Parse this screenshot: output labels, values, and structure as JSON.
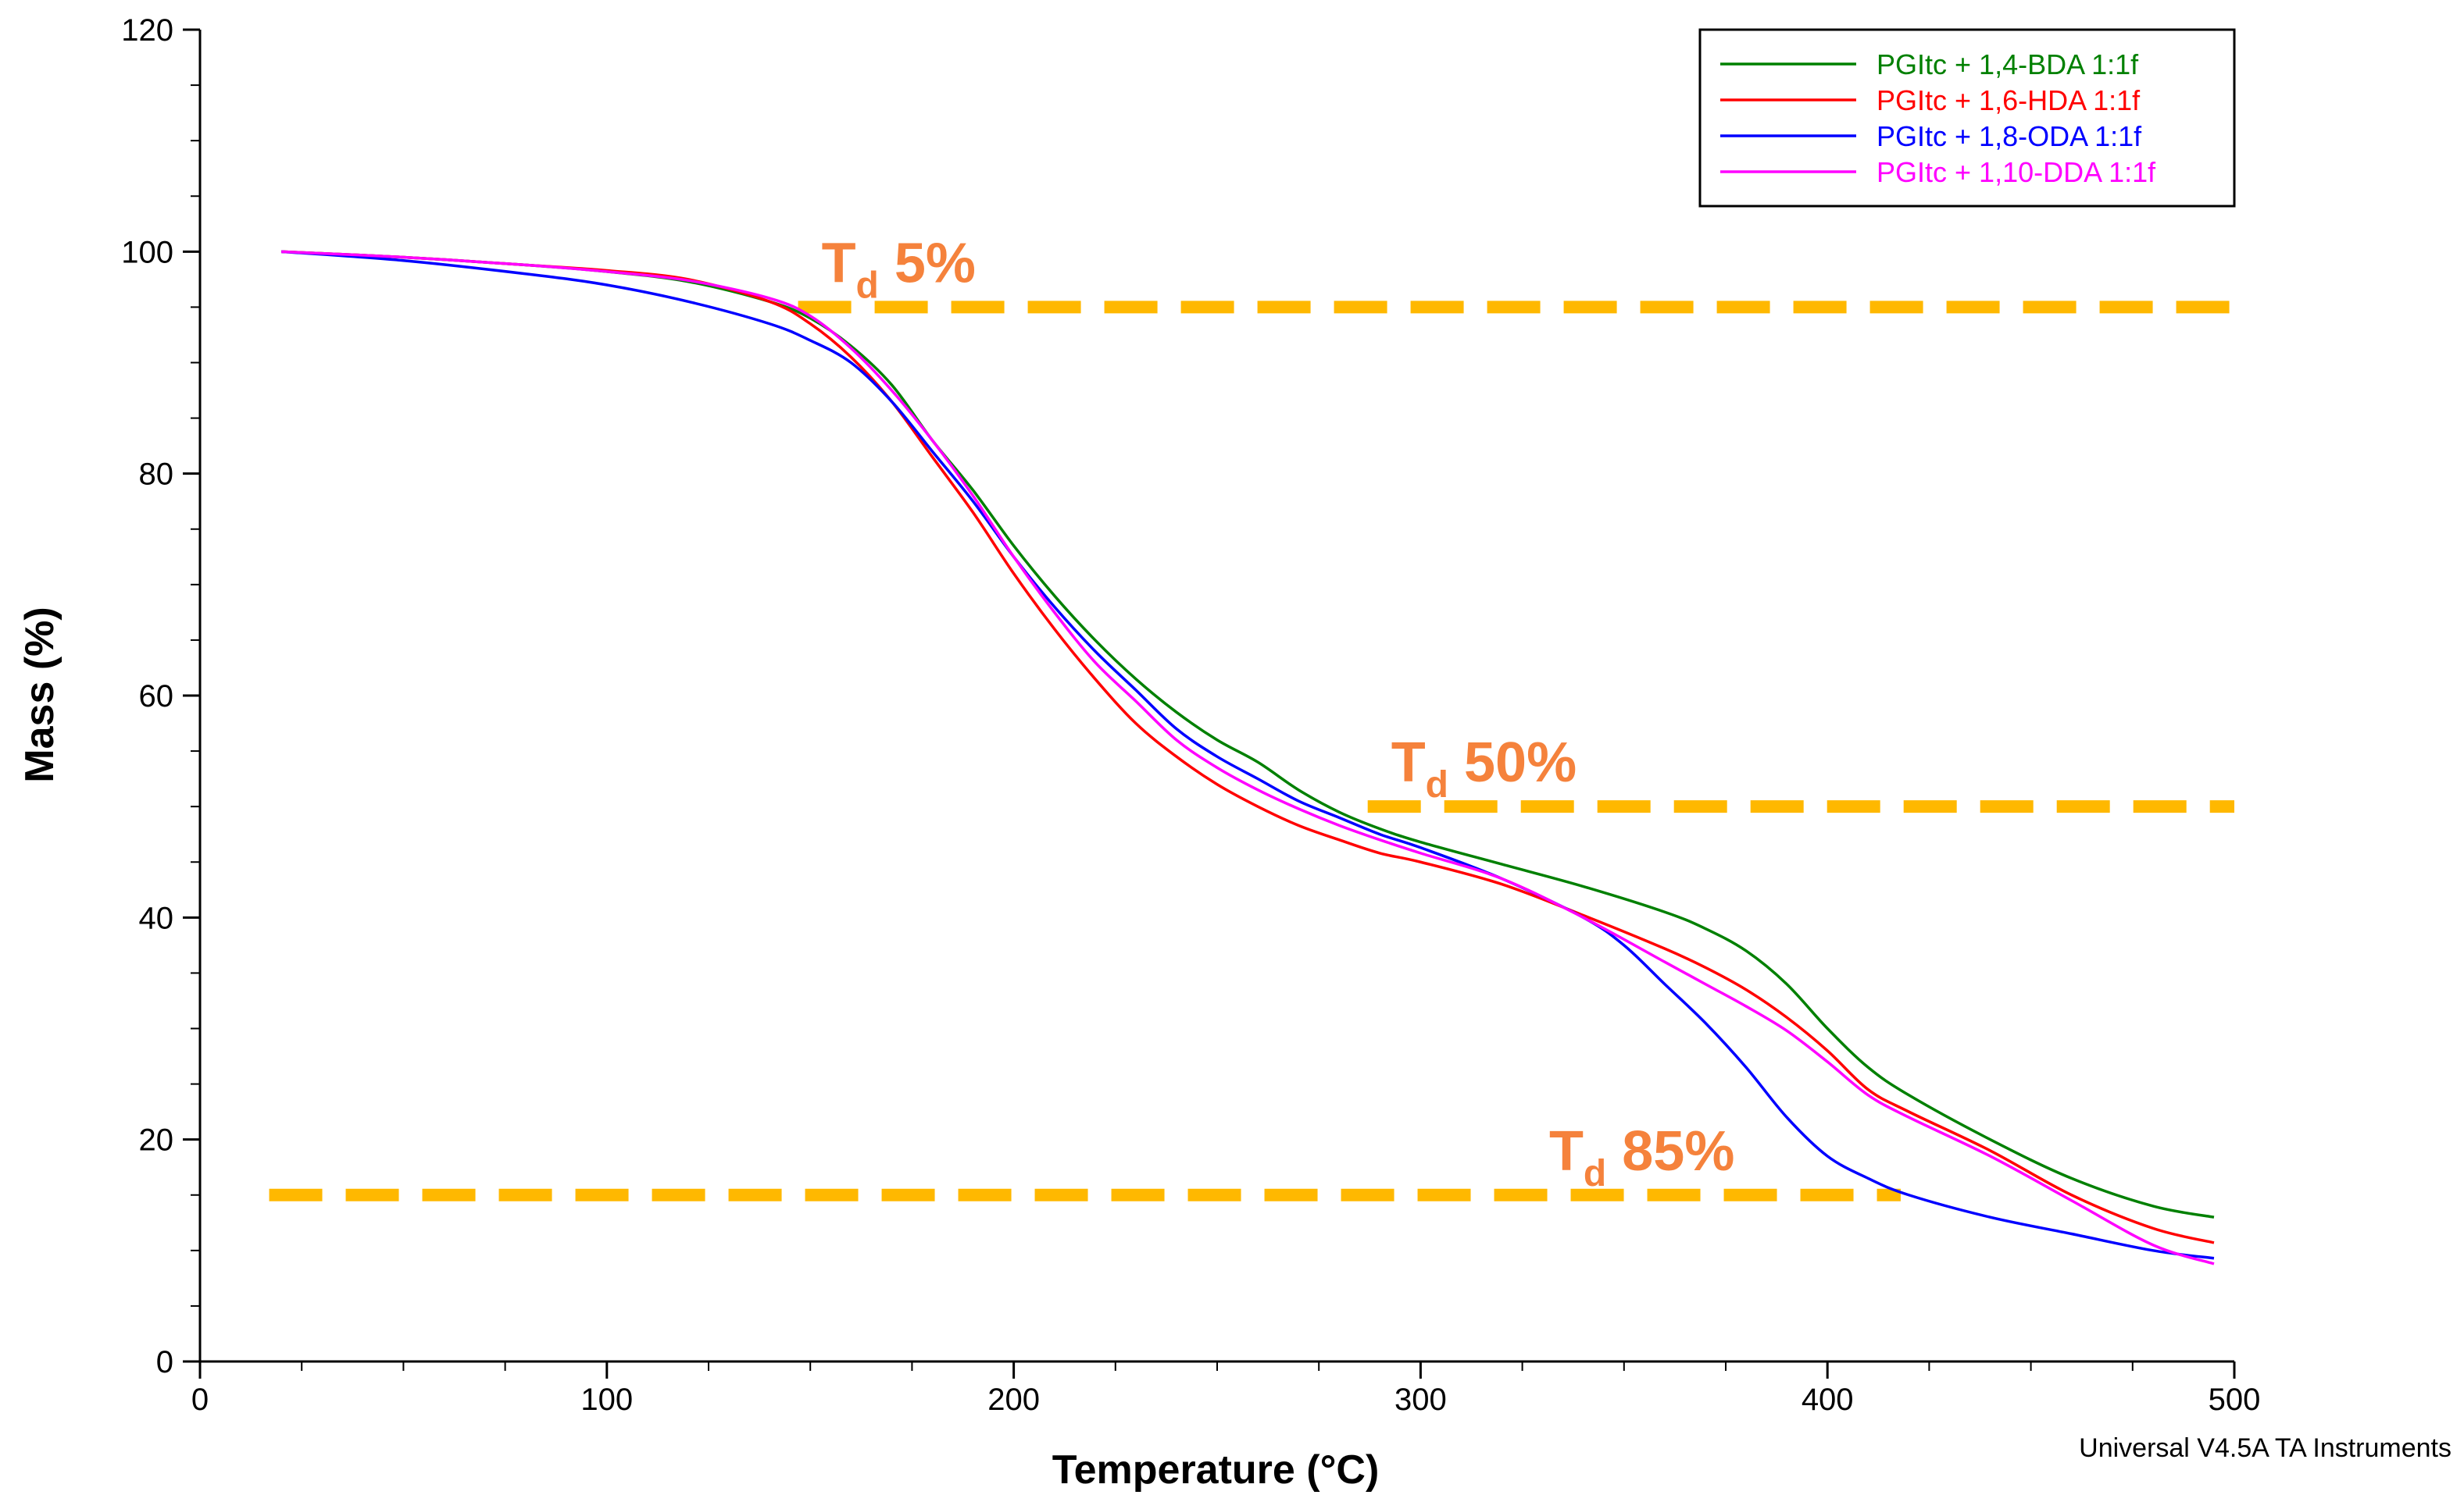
{
  "chart_data": {
    "type": "line",
    "title": "",
    "xlabel": "Temperature (°C)",
    "ylabel": "Mass (%)",
    "xlim": [
      0,
      500
    ],
    "ylim": [
      0,
      120
    ],
    "x_ticks": [
      0,
      100,
      200,
      300,
      400,
      500
    ],
    "y_ticks": [
      0,
      20,
      40,
      60,
      80,
      100,
      120
    ],
    "grid": false,
    "legend_position": "top-right",
    "series": [
      {
        "name": "PGItc + 1,4-BDA 1:1f",
        "color": "#008000",
        "x": [
          20,
          50,
          80,
          100,
          120,
          140,
          150,
          160,
          170,
          180,
          190,
          200,
          210,
          220,
          230,
          240,
          250,
          260,
          270,
          280,
          290,
          300,
          320,
          340,
          360,
          370,
          380,
          390,
          400,
          410,
          420,
          440,
          460,
          480,
          495
        ],
        "y": [
          100,
          99.5,
          98.8,
          98.2,
          97.3,
          95.5,
          94,
          91.5,
          88,
          83,
          78.5,
          73.5,
          69,
          65,
          61.5,
          58.5,
          56,
          54,
          51.5,
          49.5,
          48,
          46.8,
          44.8,
          42.8,
          40.5,
          39,
          37,
          34,
          30,
          26.5,
          24,
          20,
          16.5,
          14,
          13
        ]
      },
      {
        "name": "PGItc + 1,6-HDA 1:1f",
        "color": "#ff0000",
        "x": [
          20,
          50,
          80,
          100,
          120,
          140,
          150,
          160,
          170,
          180,
          190,
          200,
          210,
          220,
          230,
          240,
          250,
          260,
          270,
          280,
          290,
          300,
          320,
          340,
          360,
          370,
          380,
          390,
          400,
          410,
          420,
          440,
          460,
          480,
          495
        ],
        "y": [
          100,
          99.5,
          98.8,
          98.3,
          97.5,
          95.5,
          93.5,
          90.5,
          86.5,
          81.5,
          76.5,
          71,
          66,
          61.5,
          57.5,
          54.5,
          52,
          50,
          48.3,
          47,
          45.8,
          45,
          43,
          40.2,
          37.2,
          35.5,
          33.5,
          31,
          28,
          24.5,
          22.5,
          19,
          15,
          12,
          10.7
        ]
      },
      {
        "name": "PGItc + 1,8-ODA 1:1f",
        "color": "#0000ff",
        "x": [
          20,
          50,
          80,
          100,
          120,
          140,
          150,
          160,
          170,
          180,
          190,
          200,
          210,
          220,
          230,
          240,
          250,
          260,
          270,
          280,
          290,
          300,
          320,
          340,
          350,
          360,
          370,
          380,
          390,
          400,
          410,
          420,
          440,
          460,
          480,
          495
        ],
        "y": [
          100,
          99.2,
          98,
          97,
          95.5,
          93.5,
          92,
          90,
          86.5,
          82,
          77.5,
          72.5,
          68,
          64,
          60.5,
          57,
          54.5,
          52.5,
          50.5,
          49,
          47.5,
          46.3,
          43.5,
          40,
          37.5,
          34,
          30.5,
          26.5,
          22,
          18.5,
          16.5,
          15,
          13,
          11.5,
          10,
          9.3
        ]
      },
      {
        "name": "PGItc + 1,10-DDA 1:1f",
        "color": "#ff00ff",
        "x": [
          20,
          50,
          80,
          100,
          120,
          140,
          150,
          160,
          170,
          180,
          190,
          200,
          210,
          220,
          230,
          240,
          250,
          260,
          270,
          280,
          290,
          300,
          320,
          340,
          360,
          370,
          380,
          390,
          400,
          410,
          420,
          440,
          460,
          480,
          495
        ],
        "y": [
          100,
          99.5,
          98.8,
          98.2,
          97.4,
          95.8,
          94.2,
          91.3,
          87.5,
          83,
          78,
          72.5,
          67.5,
          63,
          59.5,
          56,
          53.5,
          51.5,
          49.8,
          48.3,
          47,
          45.8,
          43.5,
          40,
          36,
          34,
          32,
          29.8,
          27,
          24,
          22,
          18.5,
          14.5,
          10.5,
          8.8
        ]
      }
    ],
    "reference_lines": [
      {
        "label_main": "T",
        "label_sub": "d",
        "label_rest": " 5%",
        "y": 95,
        "x_start": 147,
        "x_end": 500,
        "color": "#ffb800",
        "label_color": "#f5823c"
      },
      {
        "label_main": "T",
        "label_sub": "d",
        "label_rest": " 50%",
        "y": 50,
        "x_start": 287,
        "x_end": 500,
        "color": "#ffb800",
        "label_color": "#f5823c"
      },
      {
        "label_main": "T",
        "label_sub": "d",
        "label_rest": " 85%",
        "y": 15,
        "x_start": 17,
        "x_end": 418,
        "color": "#ffb800",
        "label_color": "#f5823c"
      }
    ]
  },
  "footer": {
    "credit": "Universal V4.5A TA Instruments"
  }
}
